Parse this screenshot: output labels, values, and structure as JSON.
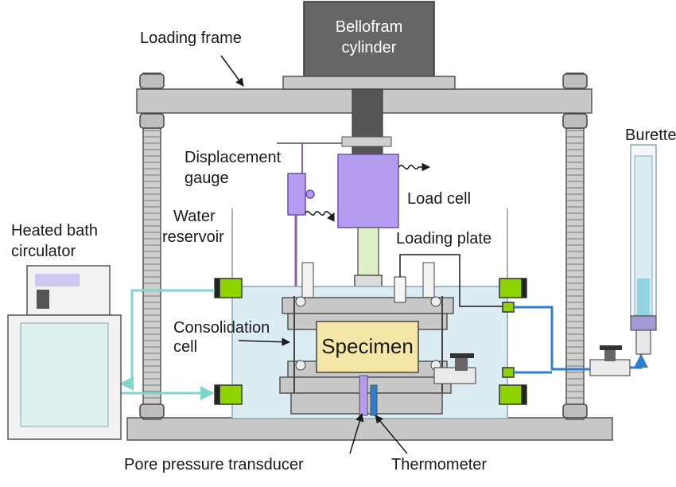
{
  "labels": {
    "bellofram_line1": "Bellofram",
    "bellofram_line2": "cylinder",
    "loading_frame": "Loading frame",
    "displacement_gauge_line1": "Displacement",
    "displacement_gauge_line2": "gauge",
    "load_cell": "Load cell",
    "water_reservoir_line1": "Water",
    "water_reservoir_line2": "reservoir",
    "heated_bath_line1": "Heated bath",
    "heated_bath_line2": "circulator",
    "loading_plate": "Loading plate",
    "consolidation_cell_line1": "Consolidation",
    "consolidation_cell_line2": "cell",
    "specimen": "Specimen",
    "burette": "Burette",
    "pore_pressure_transducer": "Pore pressure transducer",
    "thermometer": "Thermometer"
  },
  "colors": {
    "frame_gray": "#c8c8c8",
    "dark_gray": "#555555",
    "water_blue": "#dcecf3",
    "heating_line_cyan": "#7fd6cc",
    "drain_line_blue": "#2f7fd0",
    "load_cell_purple": "#b49cf0",
    "specimen_yellow": "#f3e6a6",
    "valve_green": "#8fd400",
    "burette_purple": "#a29ad8"
  }
}
